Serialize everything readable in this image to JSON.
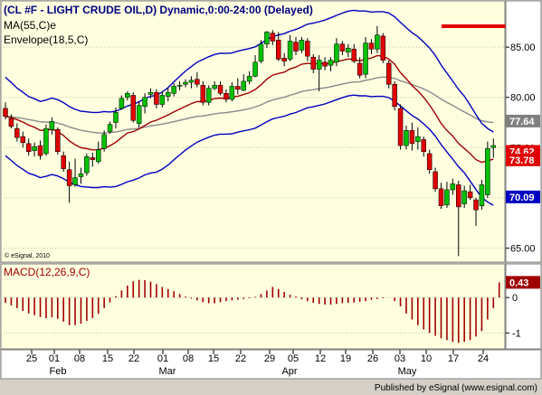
{
  "chart_data": [
    {
      "type": "candlestick",
      "title": "(CL #F - LIGHT CRUDE OIL,D) Dynamic,0:00-24:00 (Delayed)",
      "indicator_labels": [
        "MA(55,C)e",
        "Envelope(18,5,C)"
      ],
      "y_ticks": [
        "85.00",
        "80.00",
        "75.00",
        "70.00",
        "65.00"
      ],
      "ylim": [
        63.6,
        89.6
      ],
      "price_flags": [
        {
          "value": "77.64",
          "color": "#808080"
        },
        {
          "value": "74.62",
          "color": "#e00000"
        },
        {
          "value": "73.78",
          "color": "#e00000"
        },
        {
          "value": "70.09",
          "color": "#0000c0"
        }
      ],
      "candles": [
        {
          "o": 78.9,
          "h": 79.5,
          "l": 77.8,
          "c": 78.1
        },
        {
          "o": 77.9,
          "h": 78.3,
          "l": 76.9,
          "c": 77.1
        },
        {
          "o": 76.9,
          "h": 77.4,
          "l": 75.6,
          "c": 76.0
        },
        {
          "o": 76.1,
          "h": 76.6,
          "l": 75.0,
          "c": 75.5
        },
        {
          "o": 75.4,
          "h": 75.9,
          "l": 74.2,
          "c": 74.6
        },
        {
          "o": 74.7,
          "h": 75.5,
          "l": 74.1,
          "c": 75.1
        },
        {
          "o": 75.2,
          "h": 75.7,
          "l": 73.8,
          "c": 74.2
        },
        {
          "o": 74.4,
          "h": 77.3,
          "l": 74.2,
          "c": 76.9
        },
        {
          "o": 76.8,
          "h": 78.0,
          "l": 76.3,
          "c": 77.6
        },
        {
          "o": 76.8,
          "h": 77.0,
          "l": 74.3,
          "c": 74.6
        },
        {
          "o": 74.2,
          "h": 74.6,
          "l": 72.6,
          "c": 72.9
        },
        {
          "o": 72.8,
          "h": 73.6,
          "l": 69.5,
          "c": 71.2
        },
        {
          "o": 71.3,
          "h": 73.9,
          "l": 71.1,
          "c": 72.0
        },
        {
          "o": 72.1,
          "h": 73.0,
          "l": 71.4,
          "c": 72.4
        },
        {
          "o": 72.5,
          "h": 74.4,
          "l": 72.2,
          "c": 74.1
        },
        {
          "o": 74.0,
          "h": 74.5,
          "l": 73.1,
          "c": 73.8
        },
        {
          "o": 73.6,
          "h": 75.6,
          "l": 73.4,
          "c": 74.8
        },
        {
          "o": 74.9,
          "h": 76.7,
          "l": 74.6,
          "c": 76.3
        },
        {
          "o": 76.6,
          "h": 77.6,
          "l": 76.4,
          "c": 77.3
        },
        {
          "o": 77.5,
          "h": 79.0,
          "l": 76.9,
          "c": 78.5
        },
        {
          "o": 78.9,
          "h": 80.2,
          "l": 78.8,
          "c": 79.9
        },
        {
          "o": 80.0,
          "h": 80.6,
          "l": 79.7,
          "c": 80.4
        },
        {
          "o": 80.2,
          "h": 80.5,
          "l": 77.5,
          "c": 77.7
        },
        {
          "o": 77.4,
          "h": 79.6,
          "l": 77.0,
          "c": 79.2
        },
        {
          "o": 79.1,
          "h": 80.4,
          "l": 78.4,
          "c": 80.0
        },
        {
          "o": 80.3,
          "h": 80.9,
          "l": 79.9,
          "c": 80.5
        },
        {
          "o": 80.5,
          "h": 80.8,
          "l": 78.9,
          "c": 79.3
        },
        {
          "o": 79.3,
          "h": 80.6,
          "l": 79.0,
          "c": 80.2
        },
        {
          "o": 80.1,
          "h": 81.0,
          "l": 79.6,
          "c": 80.5
        },
        {
          "o": 80.4,
          "h": 81.4,
          "l": 80.1,
          "c": 81.1
        },
        {
          "o": 81.2,
          "h": 81.6,
          "l": 80.7,
          "c": 81.2
        },
        {
          "o": 81.3,
          "h": 81.8,
          "l": 81.0,
          "c": 81.5
        },
        {
          "o": 81.5,
          "h": 82.1,
          "l": 80.9,
          "c": 81.7
        },
        {
          "o": 81.8,
          "h": 82.5,
          "l": 81.0,
          "c": 81.3
        },
        {
          "o": 81.2,
          "h": 81.6,
          "l": 79.2,
          "c": 79.5
        },
        {
          "o": 79.5,
          "h": 81.2,
          "l": 79.2,
          "c": 80.9
        },
        {
          "o": 80.9,
          "h": 81.6,
          "l": 80.7,
          "c": 81.2
        },
        {
          "o": 81.2,
          "h": 81.6,
          "l": 80.2,
          "c": 80.4
        },
        {
          "o": 80.4,
          "h": 80.8,
          "l": 79.5,
          "c": 79.8
        },
        {
          "o": 79.8,
          "h": 81.5,
          "l": 79.6,
          "c": 81.1
        },
        {
          "o": 81.1,
          "h": 81.9,
          "l": 80.3,
          "c": 80.8
        },
        {
          "o": 80.7,
          "h": 82.3,
          "l": 80.6,
          "c": 81.6
        },
        {
          "o": 81.6,
          "h": 82.6,
          "l": 81.3,
          "c": 82.1
        },
        {
          "o": 82.1,
          "h": 84.2,
          "l": 82.0,
          "c": 83.5
        },
        {
          "o": 83.6,
          "h": 85.7,
          "l": 83.4,
          "c": 85.3
        },
        {
          "o": 85.3,
          "h": 86.6,
          "l": 84.9,
          "c": 86.5
        },
        {
          "o": 86.4,
          "h": 86.7,
          "l": 85.2,
          "c": 85.6
        },
        {
          "o": 85.7,
          "h": 86.5,
          "l": 83.6,
          "c": 83.8
        },
        {
          "o": 83.9,
          "h": 84.4,
          "l": 83.1,
          "c": 83.6
        },
        {
          "o": 83.8,
          "h": 86.2,
          "l": 83.6,
          "c": 85.6
        },
        {
          "o": 85.5,
          "h": 86.0,
          "l": 84.2,
          "c": 84.6
        },
        {
          "o": 84.7,
          "h": 86.0,
          "l": 84.4,
          "c": 85.7
        },
        {
          "o": 85.6,
          "h": 85.9,
          "l": 83.6,
          "c": 84.1
        },
        {
          "o": 84.0,
          "h": 84.3,
          "l": 82.4,
          "c": 82.8
        },
        {
          "o": 82.8,
          "h": 84.2,
          "l": 80.6,
          "c": 83.7
        },
        {
          "o": 83.5,
          "h": 84.0,
          "l": 82.7,
          "c": 83.1
        },
        {
          "o": 83.2,
          "h": 84.0,
          "l": 82.6,
          "c": 83.7
        },
        {
          "o": 83.5,
          "h": 85.9,
          "l": 83.1,
          "c": 85.3
        },
        {
          "o": 85.3,
          "h": 85.6,
          "l": 84.2,
          "c": 84.6
        },
        {
          "o": 84.5,
          "h": 85.3,
          "l": 84.0,
          "c": 84.9
        },
        {
          "o": 84.8,
          "h": 85.3,
          "l": 83.4,
          "c": 83.6
        },
        {
          "o": 83.4,
          "h": 84.0,
          "l": 81.9,
          "c": 82.2
        },
        {
          "o": 82.3,
          "h": 86.0,
          "l": 81.9,
          "c": 85.4
        },
        {
          "o": 85.4,
          "h": 85.8,
          "l": 84.3,
          "c": 84.8
        },
        {
          "o": 84.8,
          "h": 87.1,
          "l": 84.4,
          "c": 86.2
        },
        {
          "o": 86.1,
          "h": 86.4,
          "l": 83.4,
          "c": 83.7
        },
        {
          "o": 83.4,
          "h": 83.7,
          "l": 80.9,
          "c": 81.3
        },
        {
          "o": 81.3,
          "h": 81.6,
          "l": 78.7,
          "c": 79.1
        },
        {
          "o": 78.9,
          "h": 79.3,
          "l": 74.8,
          "c": 75.2
        },
        {
          "o": 75.2,
          "h": 77.2,
          "l": 74.8,
          "c": 76.7
        },
        {
          "o": 76.7,
          "h": 77.5,
          "l": 74.7,
          "c": 75.4
        },
        {
          "o": 75.6,
          "h": 77.0,
          "l": 74.8,
          "c": 76.1
        },
        {
          "o": 75.8,
          "h": 76.1,
          "l": 74.1,
          "c": 74.6
        },
        {
          "o": 74.4,
          "h": 74.8,
          "l": 72.4,
          "c": 72.8
        },
        {
          "o": 72.6,
          "h": 73.0,
          "l": 70.6,
          "c": 70.9
        },
        {
          "o": 70.9,
          "h": 71.5,
          "l": 68.9,
          "c": 69.2
        },
        {
          "o": 69.3,
          "h": 71.6,
          "l": 69.0,
          "c": 70.8
        },
        {
          "o": 70.8,
          "h": 71.9,
          "l": 70.3,
          "c": 71.4
        },
        {
          "o": 71.3,
          "h": 71.7,
          "l": 64.2,
          "c": 69.1
        },
        {
          "o": 69.4,
          "h": 71.2,
          "l": 69.0,
          "c": 70.7
        },
        {
          "o": 70.6,
          "h": 71.3,
          "l": 69.8,
          "c": 70.0
        },
        {
          "o": 69.8,
          "h": 70.0,
          "l": 67.2,
          "c": 68.8
        },
        {
          "o": 69.2,
          "h": 71.8,
          "l": 68.8,
          "c": 71.3
        },
        {
          "o": 70.3,
          "h": 75.6,
          "l": 70.0,
          "c": 74.9
        },
        {
          "o": 75.0,
          "h": 75.9,
          "l": 74.0,
          "c": 75.2
        }
      ]
    },
    {
      "type": "bar",
      "title": "MACD(12,26,9,C)",
      "y_ticks": [
        "0",
        "-1"
      ],
      "ylim": [
        -1.45,
        0.95
      ],
      "value_flag": "0.43",
      "values": [
        -0.15,
        -0.22,
        -0.3,
        -0.38,
        -0.45,
        -0.5,
        -0.55,
        -0.58,
        -0.56,
        -0.6,
        -0.68,
        -0.78,
        -0.78,
        -0.74,
        -0.66,
        -0.58,
        -0.46,
        -0.3,
        -0.14,
        0.04,
        0.2,
        0.34,
        0.46,
        0.5,
        0.49,
        0.45,
        0.38,
        0.3,
        0.24,
        0.18,
        0.1,
        0.03,
        -0.03,
        -0.08,
        -0.13,
        -0.16,
        -0.16,
        -0.13,
        -0.1,
        -0.08,
        -0.06,
        -0.04,
        -0.02,
        0.02,
        0.1,
        0.2,
        0.3,
        0.24,
        0.16,
        0.08,
        0.03,
        -0.05,
        -0.1,
        -0.15,
        -0.18,
        -0.2,
        -0.2,
        -0.18,
        -0.16,
        -0.15,
        -0.14,
        -0.12,
        -0.1,
        -0.06,
        -0.04,
        -0.02,
        0,
        -0.1,
        -0.25,
        -0.45,
        -0.62,
        -0.78,
        -0.9,
        -1.0,
        -1.08,
        -1.15,
        -1.2,
        -1.25,
        -1.28,
        -1.25,
        -1.2,
        -1.1,
        -0.95,
        -0.62,
        -0.3,
        0.43
      ],
      "bar_color": "#a00000"
    }
  ],
  "x_axis": {
    "day_labels": [
      "25",
      "01",
      "08",
      "15",
      "22",
      "01",
      "08",
      "15",
      "22",
      "29",
      "05",
      "12",
      "19",
      "26",
      "03",
      "10",
      "17",
      "24"
    ],
    "month_labels": [
      "Feb",
      "Mar",
      "Apr",
      "May"
    ]
  },
  "watermark": "© eSignal, 2010",
  "footer": "Published by eSignal (www.esignal.com)",
  "colors": {
    "panel_bg": "#ffffe0",
    "up_candle": "#00c000",
    "down_candle": "#e00000",
    "envelope": "#0000c0",
    "ema": "#a00000",
    "ma55": "#909090",
    "title_text": "#000080",
    "frame": "#d4d0c8"
  }
}
